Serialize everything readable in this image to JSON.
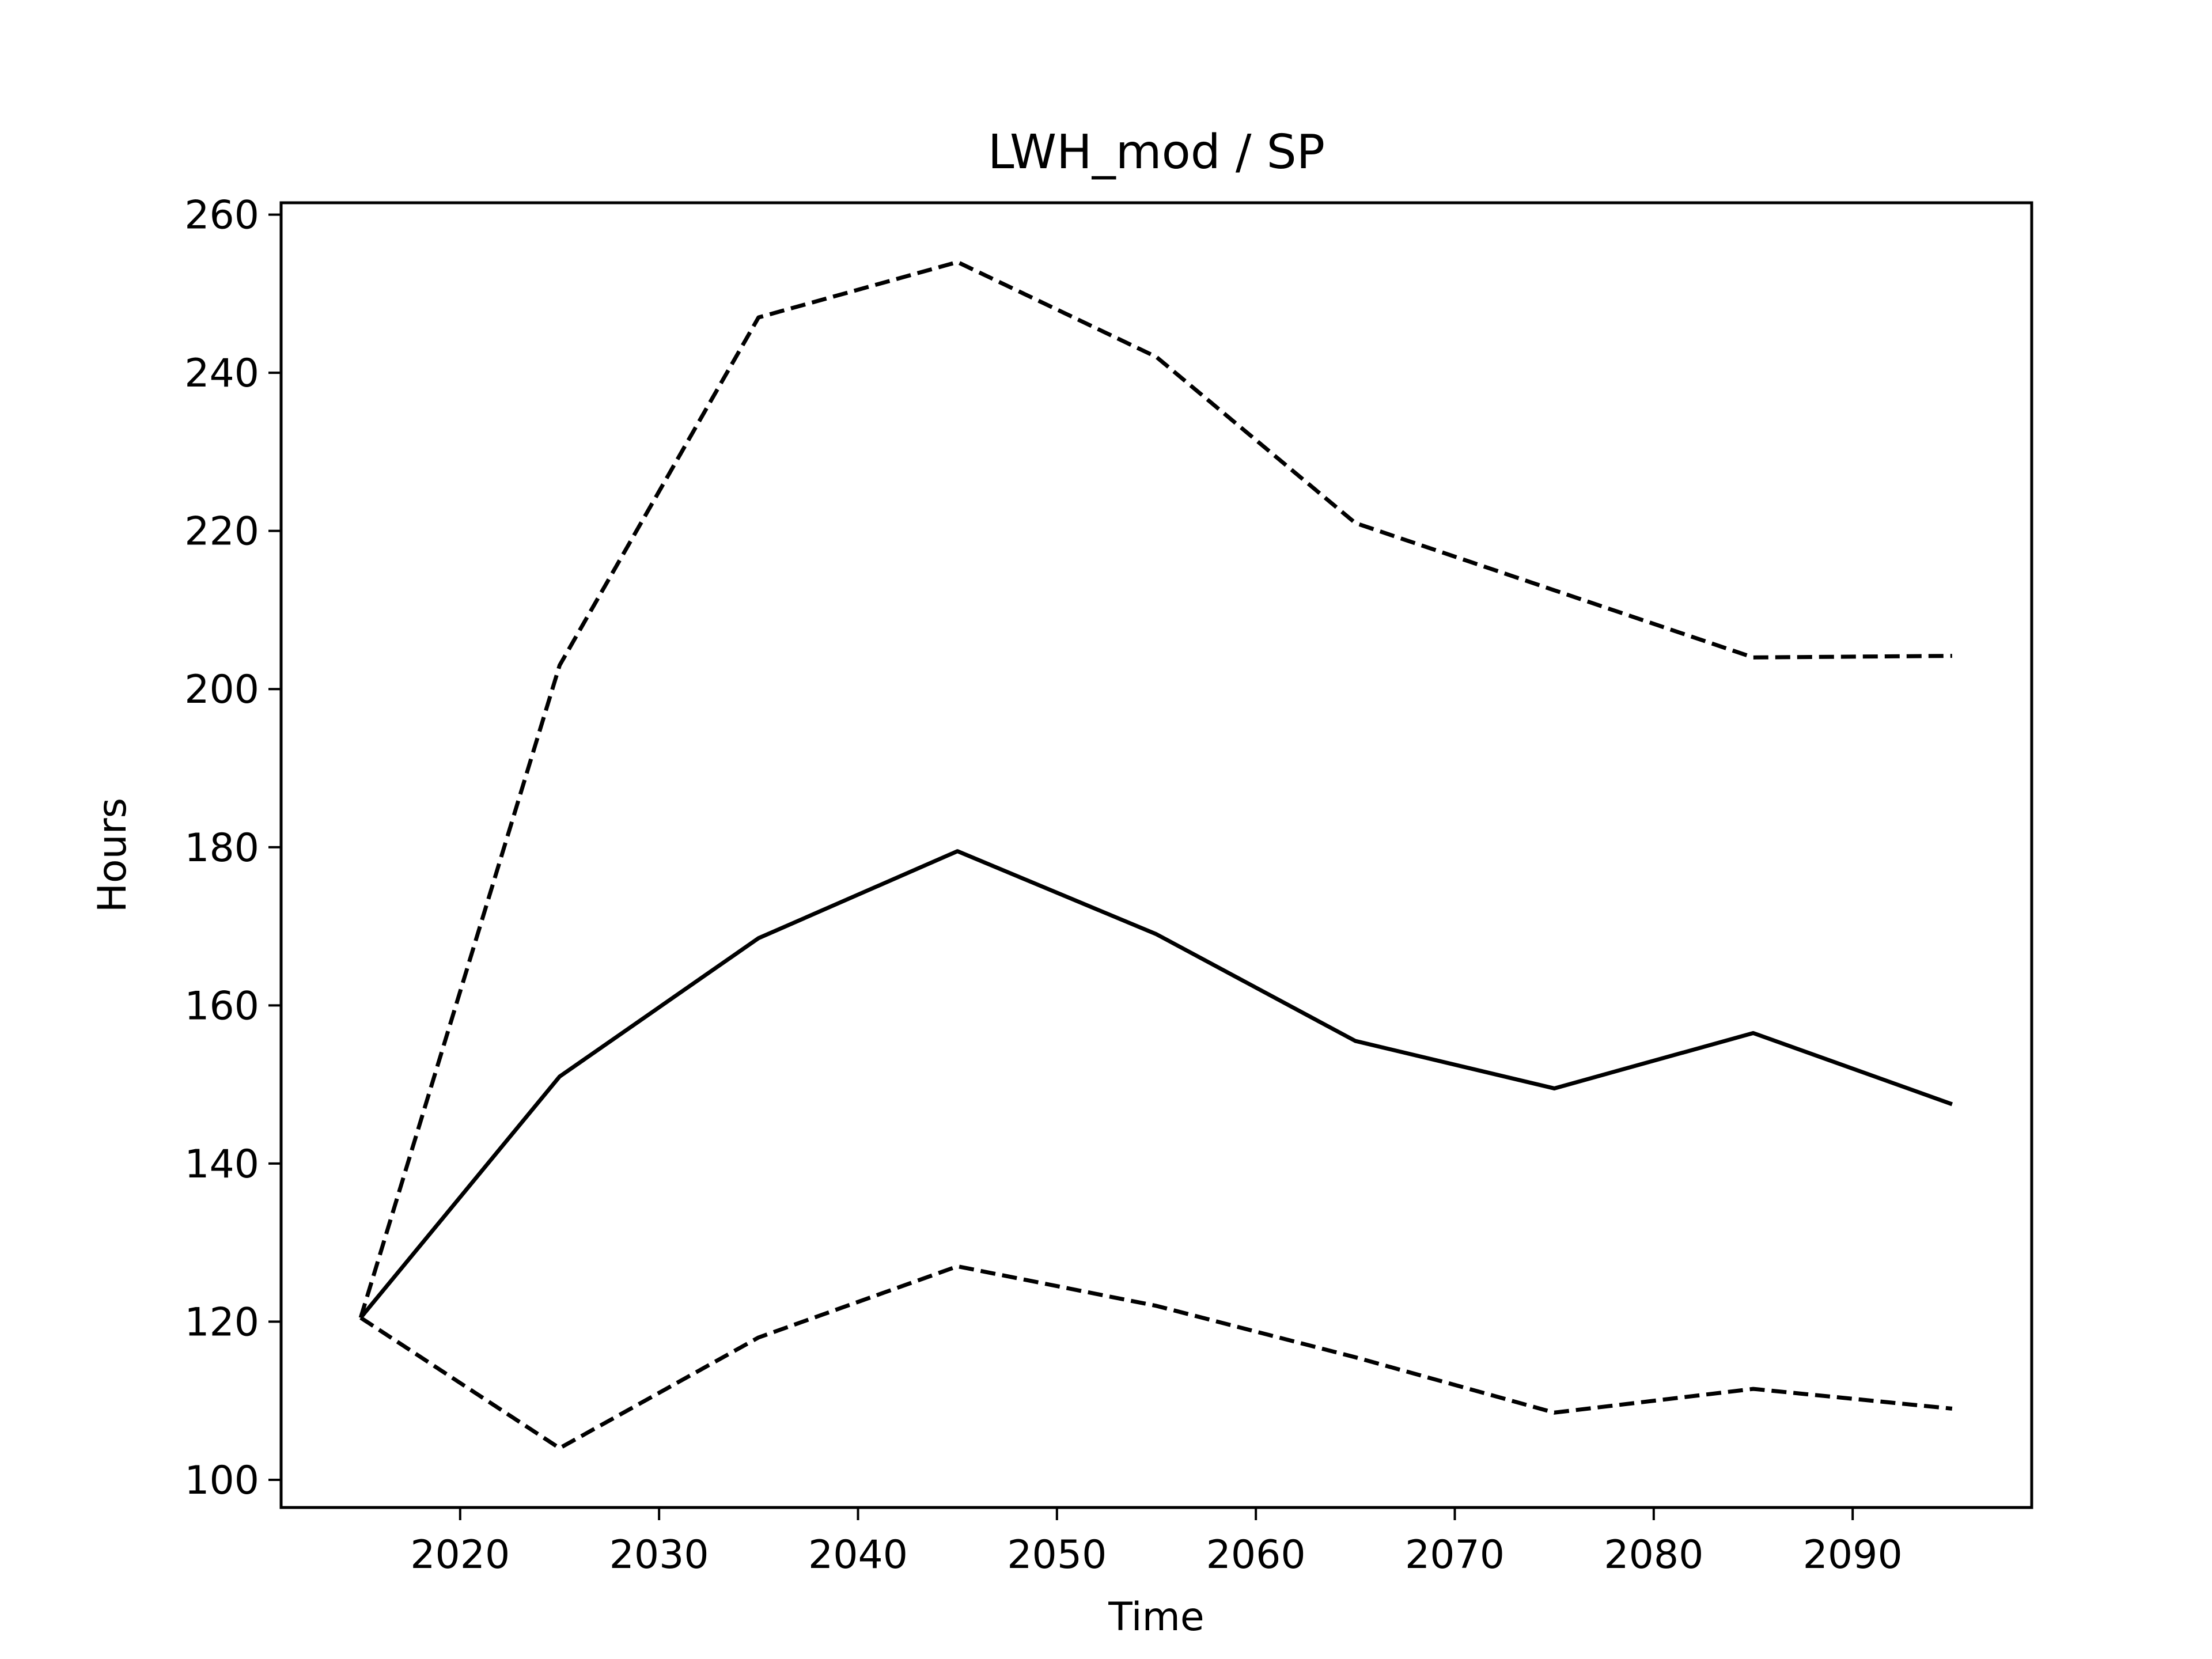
{
  "chart_data": {
    "type": "line",
    "title": "LWH_mod / SP",
    "xlabel": "Time",
    "ylabel": "Hours",
    "xlim": [
      2011,
      2099
    ],
    "ylim": [
      96.5,
      261.5
    ],
    "xticks": [
      2020,
      2030,
      2040,
      2050,
      2060,
      2070,
      2080,
      2090
    ],
    "yticks": [
      100,
      120,
      140,
      160,
      180,
      200,
      220,
      240,
      260
    ],
    "grid": false,
    "legend": "none",
    "x": [
      2015,
      2025,
      2035,
      2045,
      2055,
      2065,
      2075,
      2085,
      2095
    ],
    "series": [
      {
        "style": "dashed",
        "color": "#000000",
        "values": [
          120.5,
          203,
          247,
          254,
          242,
          221,
          212.5,
          204,
          204.2
        ]
      },
      {
        "style": "solid",
        "color": "#000000",
        "values": [
          120.5,
          151,
          168.5,
          179.5,
          169,
          155.5,
          149.5,
          156.5,
          147.5
        ]
      },
      {
        "style": "dashed",
        "color": "#000000",
        "values": [
          120.5,
          104,
          118,
          127,
          122,
          115.5,
          108.5,
          111.5,
          109
        ]
      }
    ]
  }
}
